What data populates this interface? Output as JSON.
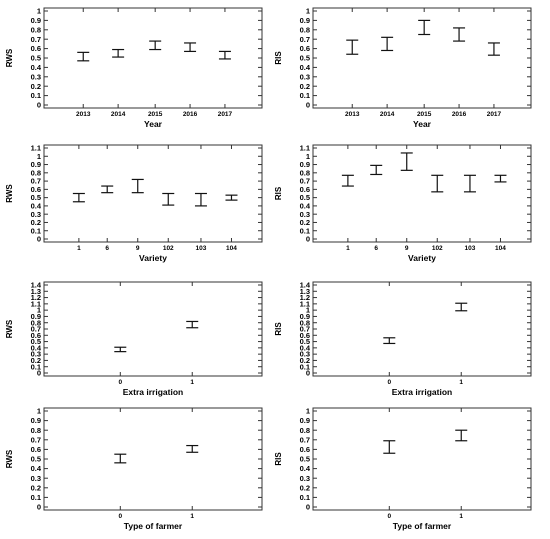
{
  "chart_data": [
    {
      "type": "errorbar",
      "xlabel": "Year",
      "ylabel": "RWS",
      "ylim": [
        0,
        1
      ],
      "yticks": [
        "0",
        "0.1",
        "0.2",
        "0.3",
        "0.4",
        "0.5",
        "0.6",
        "0.7",
        "0.8",
        "0.9",
        "1"
      ],
      "categories": [
        "2013",
        "2014",
        "2015",
        "2016",
        "2017"
      ],
      "low": [
        0.47,
        0.51,
        0.59,
        0.57,
        0.49
      ],
      "high": [
        0.56,
        0.59,
        0.68,
        0.66,
        0.57
      ]
    },
    {
      "type": "errorbar",
      "xlabel": "Year",
      "ylabel": "RIS",
      "ylim": [
        0,
        1
      ],
      "yticks": [
        "0",
        "0.1",
        "0.2",
        "0.3",
        "0.4",
        "0.5",
        "0.6",
        "0.7",
        "0.8",
        "0.9",
        "1"
      ],
      "categories": [
        "2013",
        "2014",
        "2015",
        "2016",
        "2017"
      ],
      "low": [
        0.54,
        0.58,
        0.75,
        0.68,
        0.53
      ],
      "high": [
        0.69,
        0.72,
        0.9,
        0.82,
        0.66
      ]
    },
    {
      "type": "errorbar",
      "xlabel": "Variety",
      "ylabel": "RWS",
      "ylim": [
        0,
        1.1
      ],
      "yticks": [
        "0",
        "0.1",
        "0.2",
        "0.3",
        "0.4",
        "0.5",
        "0.6",
        "0.7",
        "0.8",
        "0.9",
        "1",
        "1.1"
      ],
      "categories": [
        "1",
        "6",
        "9",
        "102",
        "103",
        "104"
      ],
      "low": [
        0.45,
        0.56,
        0.56,
        0.41,
        0.4,
        0.47
      ],
      "high": [
        0.55,
        0.64,
        0.72,
        0.55,
        0.55,
        0.53
      ]
    },
    {
      "type": "errorbar",
      "xlabel": "Variety",
      "ylabel": "RIS",
      "ylim": [
        0,
        1.1
      ],
      "yticks": [
        "0",
        "0.1",
        "0.2",
        "0.3",
        "0.4",
        "0.5",
        "0.6",
        "0.7",
        "0.8",
        "0.9",
        "1",
        "1.1"
      ],
      "categories": [
        "1",
        "6",
        "9",
        "102",
        "103",
        "104"
      ],
      "low": [
        0.64,
        0.78,
        0.83,
        0.57,
        0.57,
        0.69
      ],
      "high": [
        0.77,
        0.89,
        1.04,
        0.77,
        0.77,
        0.77
      ]
    },
    {
      "type": "errorbar",
      "xlabel": "Extra irrigation",
      "ylabel": "RWS",
      "ylim": [
        0,
        1.4
      ],
      "yticks": [
        "0",
        "0.1",
        "0.2",
        "0.3",
        "0.4",
        "0.5",
        "0.6",
        "0.7",
        "0.8",
        "0.9",
        "1",
        "1.1",
        "1.2",
        "1.3",
        "1.4"
      ],
      "categories": [
        "0",
        "1"
      ],
      "low": [
        0.34,
        0.72
      ],
      "high": [
        0.41,
        0.82
      ]
    },
    {
      "type": "errorbar",
      "xlabel": "Extra irrigation",
      "ylabel": "RIS",
      "ylim": [
        0,
        1.4
      ],
      "yticks": [
        "0",
        "0.1",
        "0.2",
        "0.3",
        "0.4",
        "0.5",
        "0.6",
        "0.7",
        "0.8",
        "0.9",
        "1",
        "1.1",
        "1.2",
        "1.3",
        "1.4"
      ],
      "categories": [
        "0",
        "1"
      ],
      "low": [
        0.47,
        0.99
      ],
      "high": [
        0.56,
        1.11
      ]
    },
    {
      "type": "errorbar",
      "xlabel": "Type of farmer",
      "ylabel": "RWS",
      "ylim": [
        0,
        1
      ],
      "yticks": [
        "0",
        "0.1",
        "0.2",
        "0.3",
        "0.4",
        "0.5",
        "0.6",
        "0.7",
        "0.8",
        "0.9",
        "1"
      ],
      "categories": [
        "0",
        "1"
      ],
      "low": [
        0.46,
        0.57
      ],
      "high": [
        0.55,
        0.64
      ]
    },
    {
      "type": "errorbar",
      "xlabel": "Type of farmer",
      "ylabel": "RIS",
      "ylim": [
        0,
        1
      ],
      "yticks": [
        "0",
        "0.1",
        "0.2",
        "0.3",
        "0.4",
        "0.5",
        "0.6",
        "0.7",
        "0.8",
        "0.9",
        "1"
      ],
      "categories": [
        "0",
        "1"
      ],
      "low": [
        0.56,
        0.69
      ],
      "high": [
        0.69,
        0.8
      ]
    }
  ]
}
